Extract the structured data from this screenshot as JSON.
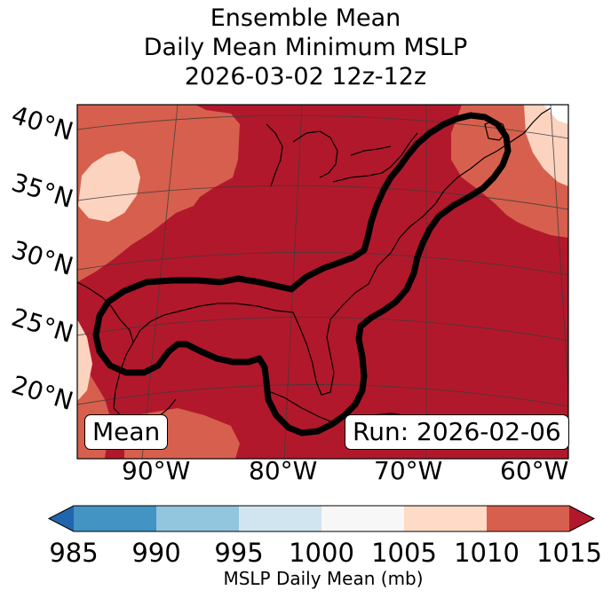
{
  "title": {
    "line1": "Ensemble Mean",
    "line2": "Daily Mean Minimum MSLP",
    "line3": "2026-03-02 12z-12z"
  },
  "map": {
    "lat_labels": [
      "40°N",
      "35°N",
      "30°N",
      "25°N",
      "20°N"
    ],
    "lon_labels": [
      "90°W",
      "80°W",
      "70°W",
      "60°W"
    ],
    "mean_box": "Mean",
    "run_box": "Run: 2026-02-06",
    "colors": {
      "lt1010": "#fbd3bf",
      "lt1015": "#d6604d",
      "ge1015": "#b2182b",
      "contour": "#000000"
    }
  },
  "colorbar": {
    "ticks": [
      "985",
      "990",
      "995",
      "1000",
      "1005",
      "1010",
      "1015"
    ],
    "label": "MSLP Daily Mean (mb)",
    "colors": [
      "#2166ac",
      "#4393c3",
      "#92c5de",
      "#d1e5f0",
      "#f7f7f7",
      "#fddbc7",
      "#d6604d",
      "#b2182b"
    ]
  }
}
